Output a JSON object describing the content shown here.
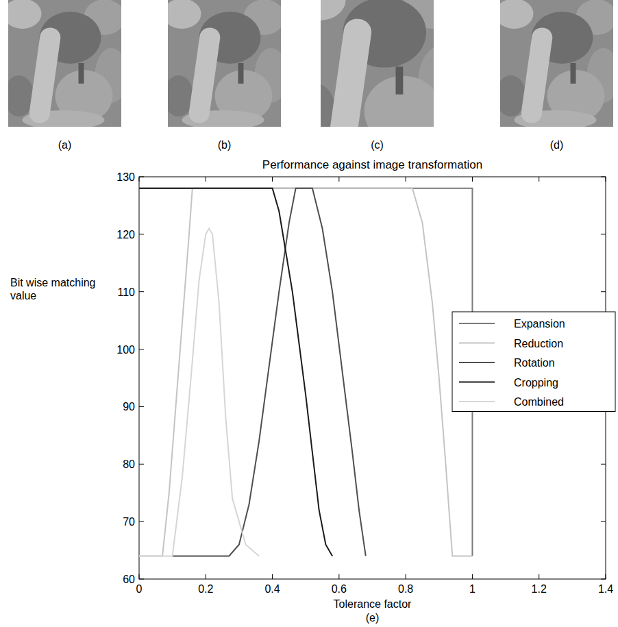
{
  "chart_data": {
    "type": "line",
    "title": "Performance against image transformation",
    "panel_labels": [
      "(a)",
      "(b)",
      "(c)",
      "(d)",
      "(e)"
    ],
    "x_label": "Tolerance factor",
    "y_label": "Bit wise matching value",
    "xlim": [
      0,
      1.4
    ],
    "xticks": [
      0,
      0.2,
      0.4,
      0.6,
      0.8,
      1,
      1.2,
      1.4
    ],
    "ylim": [
      60,
      130
    ],
    "yticks": [
      60,
      70,
      80,
      90,
      100,
      110,
      120,
      130
    ],
    "grid": false,
    "legend": "right",
    "series": [
      {
        "name": "Expansion",
        "color": "#7a7a7a",
        "x": [
          0,
          1.0,
          1.0
        ],
        "values": [
          128,
          128,
          64
        ]
      },
      {
        "name": "Reduction",
        "color": "#c4c4c4",
        "x": [
          0,
          0.07,
          0.09,
          0.11,
          0.13,
          0.15,
          0.16,
          0.82,
          0.85,
          0.88,
          0.9,
          0.92,
          0.94,
          1.0
        ],
        "values": [
          64,
          64,
          75,
          90,
          105,
          120,
          128,
          128,
          122,
          108,
          95,
          80,
          64,
          64
        ]
      },
      {
        "name": "Rotation",
        "color": "#4f4f4f",
        "x": [
          0.1,
          0.27,
          0.3,
          0.33,
          0.36,
          0.39,
          0.42,
          0.45,
          0.47,
          0.52,
          0.55,
          0.58,
          0.61,
          0.64,
          0.66,
          0.68
        ],
        "values": [
          64,
          64,
          66,
          73,
          84,
          97,
          110,
          122,
          128,
          128,
          121,
          110,
          96,
          82,
          72,
          64
        ]
      },
      {
        "name": "Cropping",
        "color": "#1a1a1a",
        "x": [
          0,
          0.4,
          0.42,
          0.44,
          0.46,
          0.48,
          0.5,
          0.52,
          0.54,
          0.56,
          0.58
        ],
        "values": [
          128,
          128,
          124,
          117,
          110,
          101,
          92,
          82,
          72,
          66,
          64
        ]
      },
      {
        "name": "Combined",
        "color": "#d6d6d6",
        "x": [
          0,
          0.1,
          0.13,
          0.16,
          0.18,
          0.2,
          0.21,
          0.22,
          0.24,
          0.26,
          0.28,
          0.3,
          0.32,
          0.36
        ],
        "values": [
          64,
          64,
          78,
          98,
          112,
          120,
          121,
          120,
          108,
          88,
          74,
          70,
          66,
          64
        ]
      }
    ]
  }
}
